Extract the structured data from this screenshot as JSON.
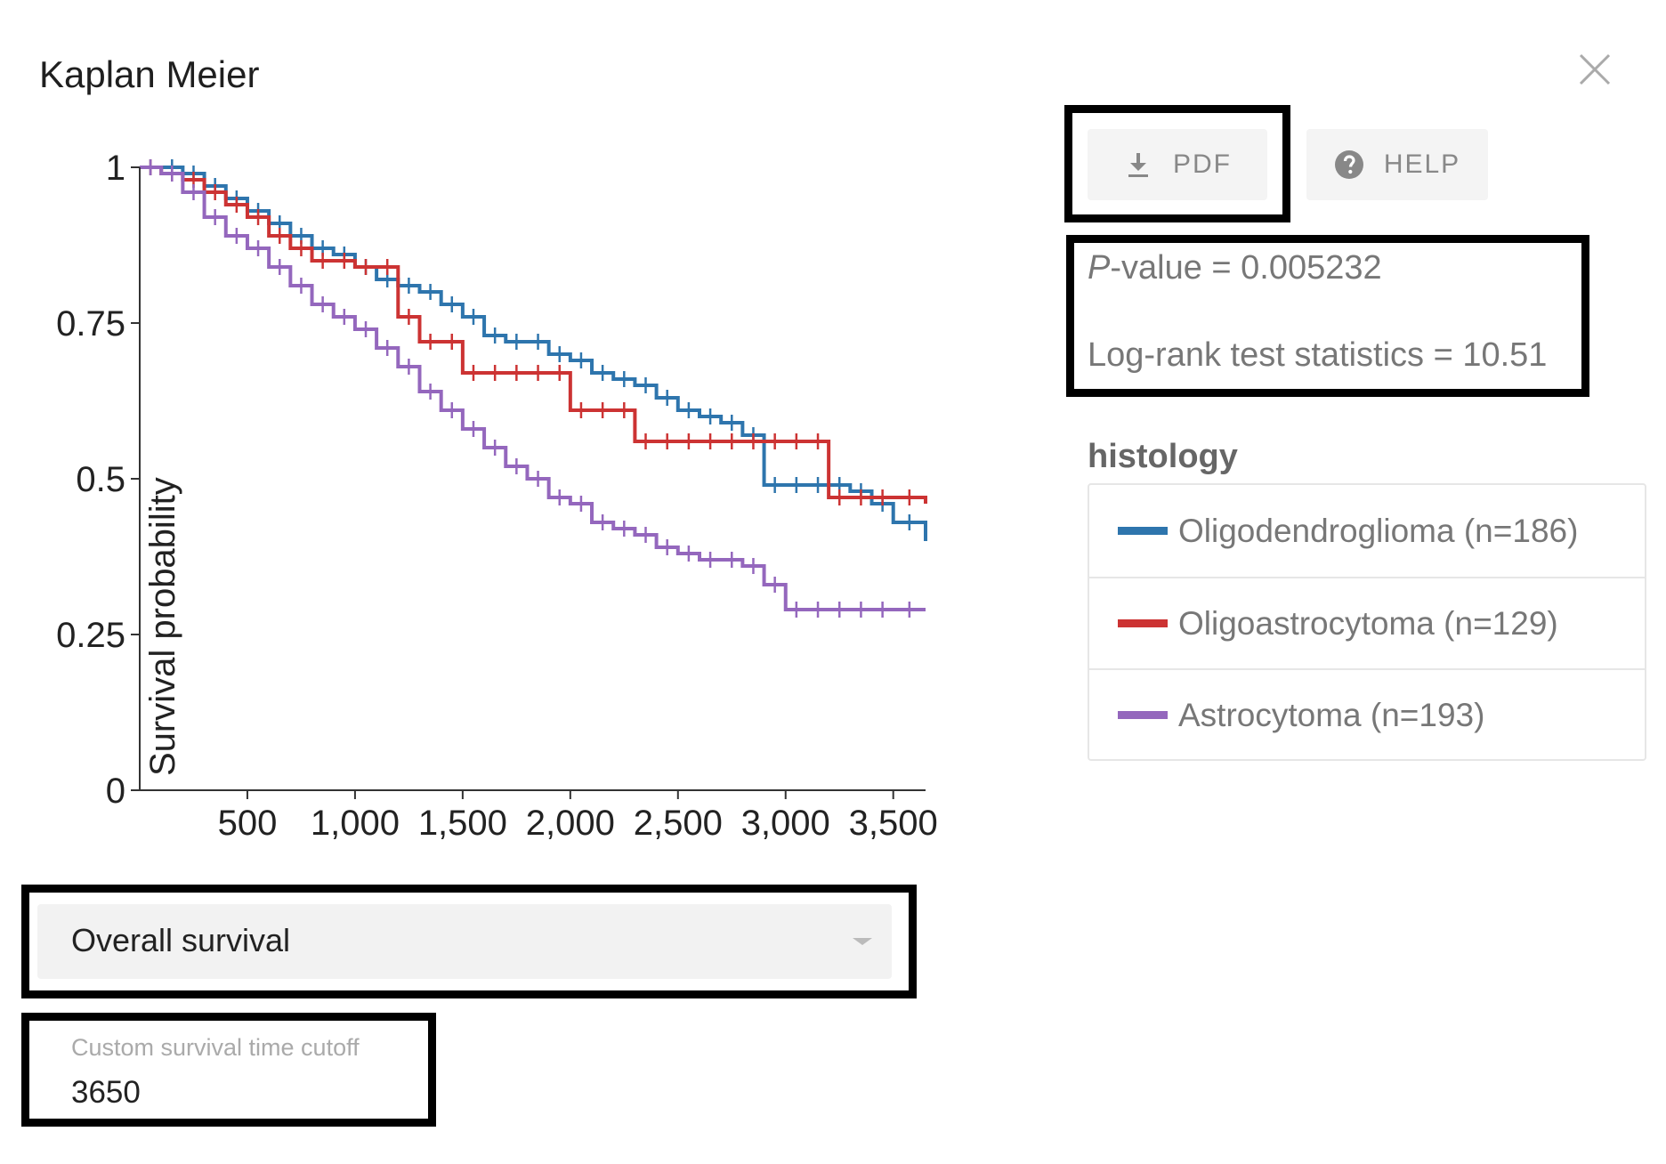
{
  "dialog": {
    "title": "Kaplan Meier"
  },
  "toolbar": {
    "pdf_label": "PDF",
    "help_label": "HELP"
  },
  "stats": {
    "p_label_italic": "P",
    "p_label_rest": "-value = 0.005232",
    "logrank_text": "Log-rank test statistics = 10.51"
  },
  "legend": {
    "title": "histology",
    "items": [
      {
        "label": "Oligodendroglioma (n=186)",
        "color": "#2e75ad"
      },
      {
        "label": "Oligoastrocytoma (n=129)",
        "color": "#cc3333"
      },
      {
        "label": "Astrocytoma (n=193)",
        "color": "#9467bd"
      }
    ]
  },
  "controls": {
    "survival_select_value": "Overall survival",
    "cutoff_label": "Custom survival time cutoff",
    "cutoff_value": "3650"
  },
  "chart_data": {
    "type": "line",
    "ylabel": "Survival probability",
    "xlabel": "",
    "xlim": [
      0,
      3650
    ],
    "ylim": [
      0,
      1
    ],
    "x_ticks": [
      500,
      1000,
      1500,
      2000,
      2500,
      3000,
      3500
    ],
    "x_tick_labels": [
      "500",
      "1,000",
      "1,500",
      "2,000",
      "2,500",
      "3,000",
      "3,500"
    ],
    "y_ticks": [
      0,
      0.25,
      0.5,
      0.75,
      1
    ],
    "y_tick_labels": [
      "0",
      "0.25",
      "0.5",
      "0.75",
      "1"
    ],
    "series": [
      {
        "name": "Oligodendroglioma (n=186)",
        "color": "#2e75ad",
        "x": [
          0,
          100,
          200,
          300,
          400,
          500,
          600,
          700,
          800,
          900,
          1000,
          1100,
          1200,
          1300,
          1400,
          1500,
          1600,
          1700,
          1800,
          1900,
          2000,
          2100,
          2200,
          2300,
          2400,
          2500,
          2600,
          2700,
          2800,
          2900,
          3000,
          3100,
          3200,
          3300,
          3400,
          3500,
          3650
        ],
        "y": [
          1,
          1,
          0.99,
          0.97,
          0.95,
          0.93,
          0.91,
          0.89,
          0.87,
          0.86,
          0.84,
          0.82,
          0.81,
          0.8,
          0.78,
          0.76,
          0.73,
          0.72,
          0.72,
          0.7,
          0.69,
          0.67,
          0.66,
          0.65,
          0.63,
          0.61,
          0.6,
          0.59,
          0.57,
          0.49,
          0.49,
          0.49,
          0.49,
          0.48,
          0.46,
          0.43,
          0.4
        ]
      },
      {
        "name": "Oligoastrocytoma (n=129)",
        "color": "#cc3333",
        "x": [
          0,
          100,
          200,
          300,
          400,
          500,
          600,
          700,
          800,
          900,
          1000,
          1100,
          1200,
          1300,
          1400,
          1500,
          1600,
          1700,
          1800,
          1900,
          2000,
          2100,
          2200,
          2300,
          2400,
          2500,
          2600,
          2700,
          2800,
          2900,
          3000,
          3100,
          3200,
          3300,
          3400,
          3500,
          3650
        ],
        "y": [
          1,
          0.99,
          0.98,
          0.96,
          0.94,
          0.92,
          0.89,
          0.87,
          0.85,
          0.85,
          0.84,
          0.84,
          0.76,
          0.72,
          0.72,
          0.67,
          0.67,
          0.67,
          0.67,
          0.67,
          0.61,
          0.61,
          0.61,
          0.56,
          0.56,
          0.56,
          0.56,
          0.56,
          0.56,
          0.56,
          0.56,
          0.56,
          0.47,
          0.47,
          0.47,
          0.47,
          0.46
        ]
      },
      {
        "name": "Astrocytoma (n=193)",
        "color": "#9467bd",
        "x": [
          0,
          100,
          200,
          300,
          400,
          500,
          600,
          700,
          800,
          900,
          1000,
          1100,
          1200,
          1300,
          1400,
          1500,
          1600,
          1700,
          1800,
          1900,
          2000,
          2100,
          2200,
          2300,
          2400,
          2500,
          2600,
          2700,
          2800,
          2900,
          3000,
          3100,
          3200,
          3300,
          3400,
          3500,
          3650
        ],
        "y": [
          1,
          0.99,
          0.96,
          0.92,
          0.89,
          0.87,
          0.84,
          0.81,
          0.78,
          0.76,
          0.74,
          0.71,
          0.68,
          0.64,
          0.61,
          0.58,
          0.55,
          0.52,
          0.5,
          0.47,
          0.46,
          0.43,
          0.42,
          0.41,
          0.39,
          0.38,
          0.37,
          0.37,
          0.36,
          0.33,
          0.29,
          0.29,
          0.29,
          0.29,
          0.29,
          0.29,
          0.29
        ]
      }
    ]
  }
}
